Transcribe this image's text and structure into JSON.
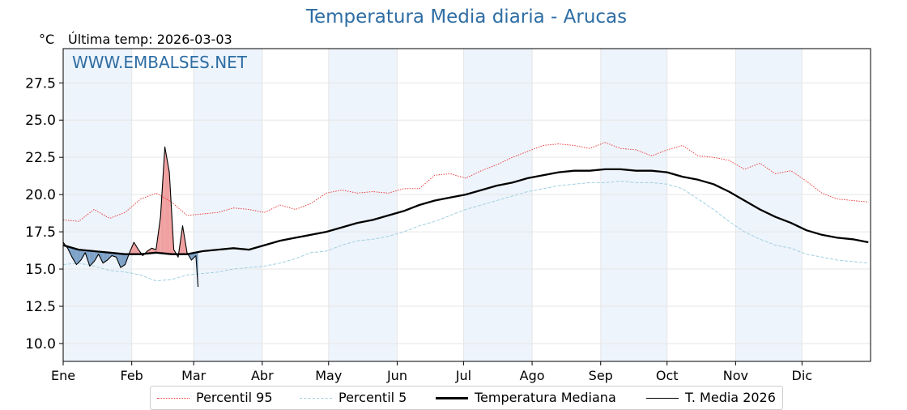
{
  "header": {
    "title": "Temperatura Media diaria - Arucas",
    "unit": "°C",
    "last_temp": "Última temp: 2026-03-03",
    "watermark": "WWW.EMBALSES.NET"
  },
  "legend": {
    "p95": "Percentil 95",
    "p5": "Percentil 5",
    "median": "Temperatura Mediana",
    "current": "T. Media 2026"
  },
  "colors": {
    "title": "#2e6da4",
    "p95": "#e8312f",
    "p5": "#9fd0e2",
    "median": "#000000",
    "current": "#000000",
    "above_fill": "#f0a0a0",
    "below_fill": "#7fa3c8",
    "month_band": "#eef4fb"
  },
  "chart_data": {
    "type": "line",
    "title": "Temperatura Media diaria - Arucas",
    "xlabel": "",
    "ylabel": "°C",
    "ylim": [
      8.8,
      29.8
    ],
    "yticks": [
      "10.0",
      "12.5",
      "15.0",
      "17.5",
      "20.0",
      "22.5",
      "25.0",
      "27.5"
    ],
    "xticks": [
      "Ene",
      "Feb",
      "Mar",
      "Abr",
      "May",
      "Jun",
      "Jul",
      "Ago",
      "Sep",
      "Oct",
      "Nov",
      "Dic"
    ],
    "grid": true,
    "legend_position": "bottom",
    "x_unit": "day of year",
    "series": [
      {
        "name": "Percentil 95",
        "style": "dotted",
        "x": [
          1,
          8,
          15,
          22,
          29,
          36,
          43,
          50,
          57,
          64,
          71,
          78,
          85,
          92,
          99,
          106,
          113,
          120,
          127,
          134,
          141,
          148,
          155,
          162,
          169,
          176,
          183,
          190,
          197,
          204,
          211,
          218,
          225,
          232,
          239,
          246,
          253,
          260,
          267,
          274,
          281,
          288,
          295,
          302,
          309,
          316,
          323,
          330,
          337,
          344,
          351,
          358,
          365
        ],
        "values": [
          18.3,
          18.2,
          19.0,
          18.4,
          18.8,
          19.7,
          20.1,
          19.5,
          18.6,
          18.7,
          18.8,
          19.1,
          19.0,
          18.8,
          19.3,
          19.0,
          19.4,
          20.1,
          20.3,
          20.1,
          20.2,
          20.1,
          20.4,
          20.4,
          21.3,
          21.4,
          21.1,
          21.6,
          22.0,
          22.5,
          22.9,
          23.3,
          23.4,
          23.3,
          23.1,
          23.5,
          23.1,
          23.0,
          22.6,
          23.0,
          23.3,
          22.6,
          22.5,
          22.3,
          21.7,
          22.1,
          21.4,
          21.6,
          20.9,
          20.1,
          19.7,
          19.6,
          19.5
        ]
      },
      {
        "name": "Percentil 5",
        "style": "dashed",
        "x": [
          1,
          8,
          15,
          22,
          29,
          36,
          43,
          50,
          57,
          64,
          71,
          78,
          85,
          92,
          99,
          106,
          113,
          120,
          127,
          134,
          141,
          148,
          155,
          162,
          169,
          176,
          183,
          190,
          197,
          204,
          211,
          218,
          225,
          232,
          239,
          246,
          253,
          260,
          267,
          274,
          281,
          288,
          295,
          302,
          309,
          316,
          323,
          330,
          337,
          344,
          351,
          358,
          365
        ],
        "values": [
          15.3,
          15.4,
          15.2,
          14.9,
          14.8,
          14.6,
          14.2,
          14.3,
          14.6,
          14.7,
          14.8,
          15.0,
          15.1,
          15.2,
          15.4,
          15.7,
          16.1,
          16.2,
          16.6,
          16.9,
          17.0,
          17.2,
          17.5,
          17.9,
          18.2,
          18.6,
          19.0,
          19.3,
          19.6,
          19.9,
          20.2,
          20.4,
          20.6,
          20.7,
          20.8,
          20.8,
          20.9,
          20.8,
          20.8,
          20.7,
          20.4,
          19.7,
          19.0,
          18.2,
          17.5,
          17.0,
          16.6,
          16.4,
          16.0,
          15.8,
          15.6,
          15.5,
          15.4
        ]
      },
      {
        "name": "Temperatura Mediana",
        "style": "solid-thick",
        "x": [
          1,
          8,
          15,
          22,
          29,
          36,
          43,
          50,
          57,
          64,
          71,
          78,
          85,
          92,
          99,
          106,
          113,
          120,
          127,
          134,
          141,
          148,
          155,
          162,
          169,
          176,
          183,
          190,
          197,
          204,
          211,
          218,
          225,
          232,
          239,
          246,
          253,
          260,
          267,
          274,
          281,
          288,
          295,
          302,
          309,
          316,
          323,
          330,
          337,
          344,
          351,
          358,
          365
        ],
        "values": [
          16.6,
          16.3,
          16.2,
          16.1,
          16.0,
          16.0,
          16.1,
          16.0,
          16.0,
          16.2,
          16.3,
          16.4,
          16.3,
          16.6,
          16.9,
          17.1,
          17.3,
          17.5,
          17.8,
          18.1,
          18.3,
          18.6,
          18.9,
          19.3,
          19.6,
          19.8,
          20.0,
          20.3,
          20.6,
          20.8,
          21.1,
          21.3,
          21.5,
          21.6,
          21.6,
          21.7,
          21.7,
          21.6,
          21.6,
          21.5,
          21.2,
          21.0,
          20.7,
          20.2,
          19.6,
          19.0,
          18.5,
          18.1,
          17.6,
          17.3,
          17.1,
          17.0,
          16.8
        ]
      },
      {
        "name": "T. Media 2026",
        "style": "solid-thin",
        "x": [
          1,
          3,
          5,
          7,
          9,
          11,
          13,
          15,
          17,
          19,
          21,
          23,
          25,
          27,
          29,
          31,
          33,
          35,
          37,
          39,
          41,
          43,
          45,
          47,
          49,
          51,
          53,
          55,
          57,
          59,
          61,
          62
        ],
        "values": [
          16.8,
          16.4,
          15.8,
          15.3,
          15.6,
          16.1,
          15.2,
          15.5,
          16.0,
          15.4,
          15.6,
          15.9,
          15.8,
          15.1,
          15.3,
          16.1,
          16.8,
          16.3,
          15.9,
          16.2,
          16.4,
          16.3,
          18.5,
          23.2,
          21.5,
          16.3,
          15.8,
          17.9,
          16.1,
          15.6,
          15.9,
          13.8
        ]
      }
    ]
  }
}
